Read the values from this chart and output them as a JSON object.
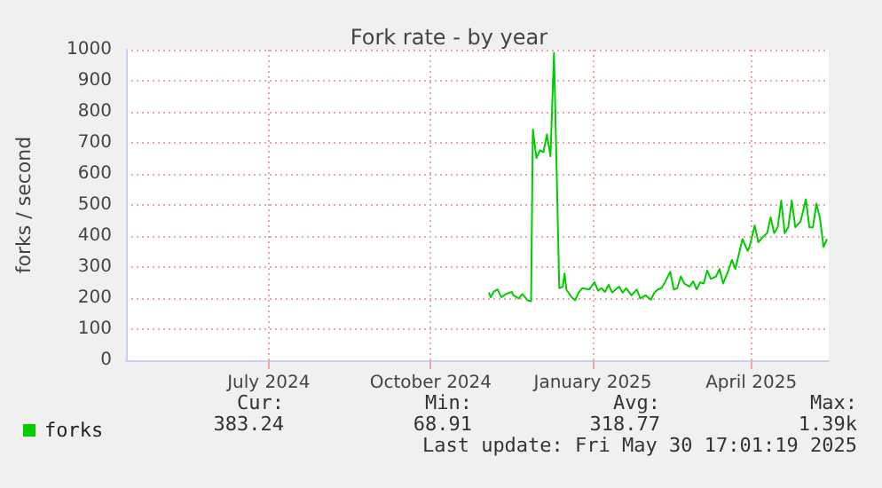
{
  "chart_data": {
    "type": "line",
    "title": "Fork rate - by year",
    "ylabel": "forks / second",
    "xlim": [
      "2024-04-26",
      "2025-05-30"
    ],
    "xticks": [
      {
        "value": "2024-07-16",
        "label": "July 2024"
      },
      {
        "value": "2024-10-16",
        "label": "October 2024"
      },
      {
        "value": "2025-01-16",
        "label": "January 2025"
      },
      {
        "value": "2025-04-16",
        "label": "April 2025"
      }
    ],
    "ylim": [
      0,
      1000
    ],
    "yticks": [
      0,
      100,
      200,
      300,
      400,
      500,
      600,
      700,
      800,
      900,
      1000
    ],
    "grid": true,
    "legend": "bottom left",
    "marker": "none",
    "line_style": "solid",
    "annotations": [
      "Cur:",
      "Min:",
      "Avg:",
      "Max:",
      "383.24",
      "68.91",
      "318.77",
      "1.39k",
      "Last update: Fri May 30 17:01:19 2025"
    ],
    "series": [
      {
        "name": "forks",
        "color": "#00cc00",
        "x": [
          "2024-11-18",
          "2024-11-19",
          "2024-11-21",
          "2024-11-23",
          "2024-11-25",
          "2024-11-28",
          "2024-12-01",
          "2024-12-02",
          "2024-12-05",
          "2024-12-07",
          "2024-12-10",
          "2024-12-12",
          "2024-12-13",
          "2024-12-15",
          "2024-12-17",
          "2024-12-19",
          "2024-12-21",
          "2024-12-23",
          "2024-12-25",
          "2024-12-28",
          "2024-12-30",
          "2024-12-31",
          "2025-01-01",
          "2025-01-04",
          "2025-01-06",
          "2025-01-08",
          "2025-01-10",
          "2025-01-14",
          "2025-01-17",
          "2025-01-19",
          "2025-01-21",
          "2025-01-23",
          "2025-01-25",
          "2025-01-27",
          "2025-01-31",
          "2025-02-02",
          "2025-02-04",
          "2025-02-07",
          "2025-02-10",
          "2025-02-12",
          "2025-02-15",
          "2025-02-18",
          "2025-02-20",
          "2025-02-22",
          "2025-02-24",
          "2025-02-26",
          "2025-03-01",
          "2025-03-03",
          "2025-03-05",
          "2025-03-07",
          "2025-03-09",
          "2025-03-12",
          "2025-03-14",
          "2025-03-16",
          "2025-03-18",
          "2025-03-20",
          "2025-03-22",
          "2025-03-24",
          "2025-03-27",
          "2025-03-29",
          "2025-03-31",
          "2025-04-03",
          "2025-04-05",
          "2025-04-07",
          "2025-04-09",
          "2025-04-11",
          "2025-04-14",
          "2025-04-15",
          "2025-04-18",
          "2025-04-20",
          "2025-04-23",
          "2025-04-25",
          "2025-04-27",
          "2025-04-29",
          "2025-05-01",
          "2025-05-03",
          "2025-05-05",
          "2025-05-07",
          "2025-05-09",
          "2025-05-11",
          "2025-05-14",
          "2025-05-17",
          "2025-05-19",
          "2025-05-21",
          "2025-05-23",
          "2025-05-25",
          "2025-05-27",
          "2025-05-29"
        ],
        "values": [
          218,
          203,
          222,
          228,
          203,
          214,
          220,
          209,
          199,
          213,
          193,
          190,
          743,
          651,
          676,
          670,
          727,
          657,
          990,
          232,
          237,
          279,
          228,
          203,
          193,
          218,
          232,
          228,
          251,
          224,
          232,
          220,
          243,
          218,
          237,
          218,
          232,
          209,
          228,
          199,
          209,
          195,
          218,
          228,
          232,
          251,
          285,
          228,
          232,
          270,
          247,
          237,
          254,
          228,
          251,
          247,
          289,
          262,
          270,
          294,
          247,
          289,
          323,
          294,
          342,
          390,
          352,
          365,
          434,
          380,
          399,
          409,
          460,
          409,
          428,
          514,
          409,
          428,
          514,
          428,
          447,
          518,
          428,
          428,
          504,
          457,
          365,
          390
        ]
      }
    ]
  }
}
